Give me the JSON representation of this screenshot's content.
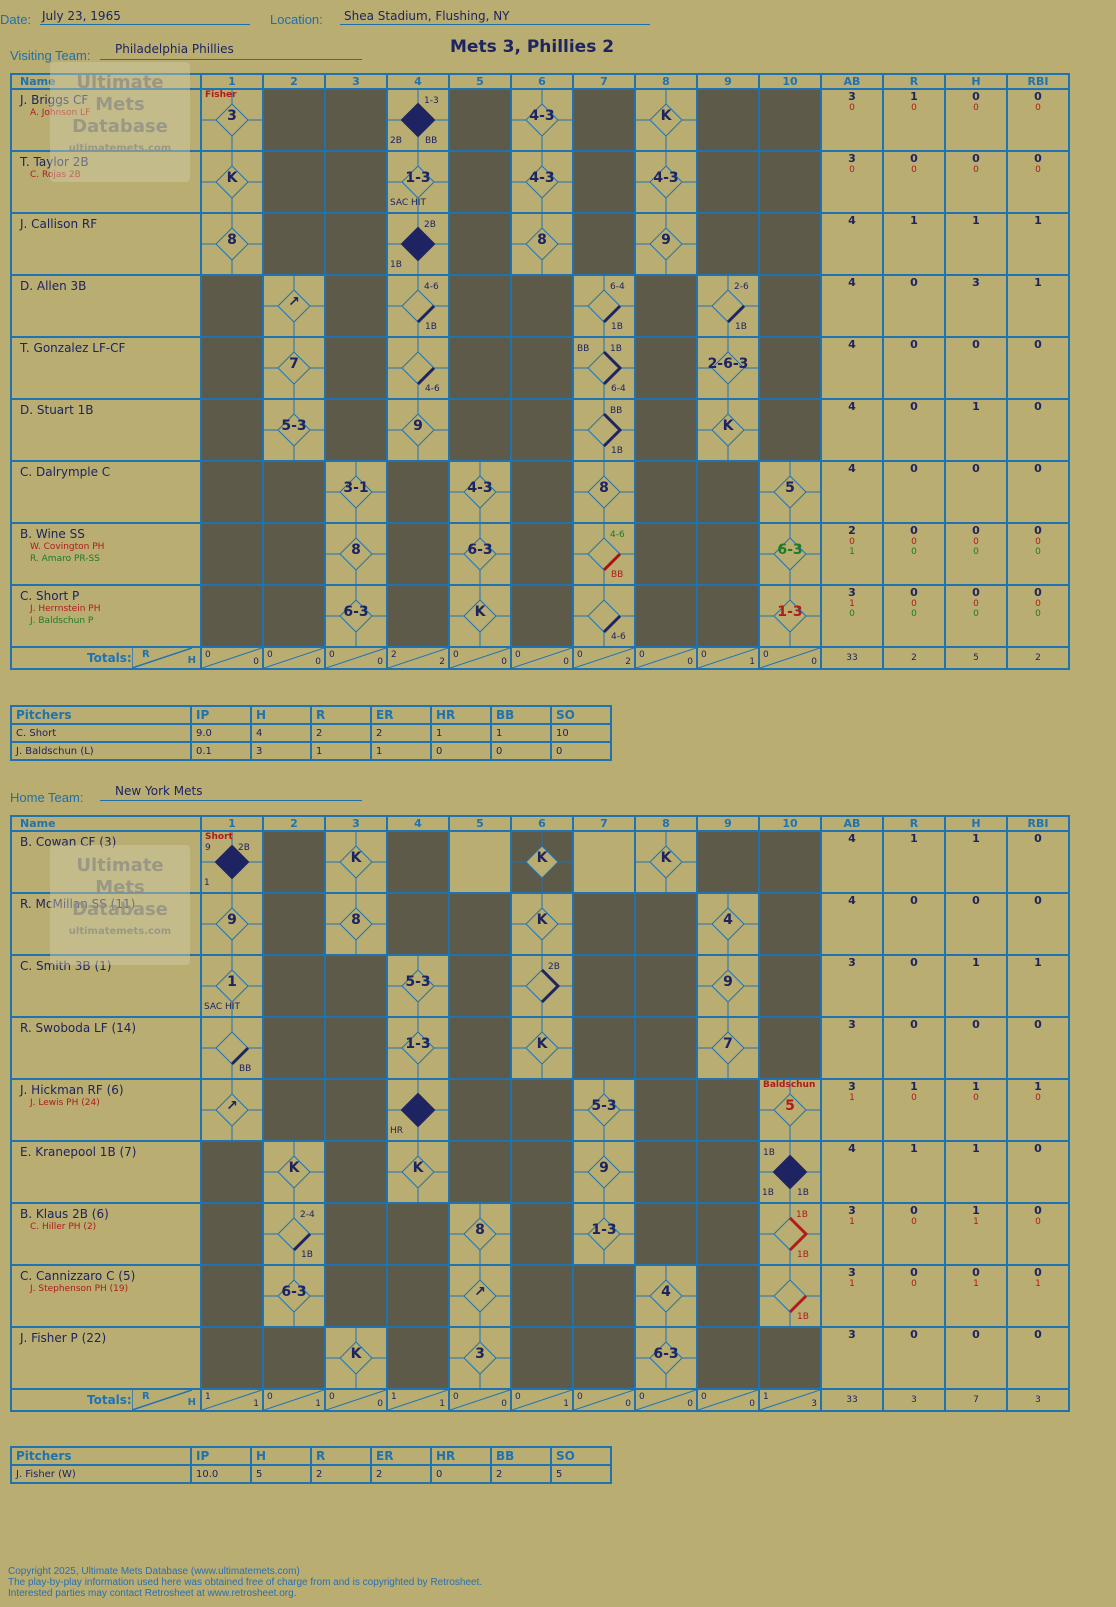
{
  "header": {
    "date_label": "Date:",
    "date": "July 23, 1965",
    "location_label": "Location:",
    "location": "Shea Stadium, Flushing, NY",
    "visiting_label": "Visiting Team:",
    "visiting": "Philadelphia Phillies",
    "home_label": "Home Team:",
    "home": "New York Mets",
    "game_title": "Mets 3, Phillies 2"
  },
  "columns": {
    "name": "Name",
    "innings": [
      "1",
      "2",
      "3",
      "4",
      "5",
      "6",
      "7",
      "8",
      "9",
      "10"
    ],
    "stats": [
      "AB",
      "R",
      "H",
      "RBI"
    ]
  },
  "totals_label": "Totals:",
  "rh": [
    "R",
    "H"
  ],
  "visitors": [
    {
      "name": "J. Briggs CF",
      "subs": [
        {
          "t": "A. Johnson LF",
          "c": "red"
        }
      ],
      "stats": [
        "3",
        "1",
        "0",
        "0"
      ],
      "sub_stats": [
        [
          "0",
          "0",
          "0",
          "0"
        ]
      ],
      "dark": [
        2,
        3,
        5,
        7,
        9,
        10
      ],
      "plays": {
        "1": {
          "res": "3",
          "note": "Fisher",
          "noteColor": "red"
        },
        "4": {
          "scored": true,
          "tr": "1-3",
          "bl": "2B",
          "br": "BB"
        },
        "6": {
          "res": "4-3"
        },
        "8": {
          "res": "K"
        }
      }
    },
    {
      "name": "T. Taylor 2B",
      "subs": [
        {
          "t": "C. Rojas 2B",
          "c": "red"
        }
      ],
      "stats": [
        "3",
        "0",
        "0",
        "0"
      ],
      "sub_stats": [
        [
          "0",
          "0",
          "0",
          "0"
        ]
      ],
      "dark": [
        2,
        3,
        5,
        7,
        9,
        10
      ],
      "plays": {
        "1": {
          "res": "K"
        },
        "4": {
          "res": "1-3",
          "bl": "SAC HIT"
        },
        "6": {
          "res": "4-3"
        },
        "8": {
          "res": "4-3"
        }
      }
    },
    {
      "name": "J. Callison RF",
      "subs": [],
      "stats": [
        "4",
        "1",
        "1",
        "1"
      ],
      "sub_stats": [],
      "dark": [
        2,
        3,
        5,
        7,
        9,
        10
      ],
      "plays": {
        "1": {
          "res": "8"
        },
        "4": {
          "scored": true,
          "tr": "2B",
          "bl": "1B"
        },
        "6": {
          "res": "8"
        },
        "8": {
          "res": "9"
        }
      }
    },
    {
      "name": "D. Allen 3B",
      "subs": [],
      "stats": [
        "4",
        "0",
        "3",
        "1"
      ],
      "sub_stats": [],
      "dark": [
        1,
        3,
        5,
        6,
        8,
        10
      ],
      "plays": {
        "2": {
          "res": "↗"
        },
        "4": {
          "first": true,
          "tr": "4-6",
          "br": "1B"
        },
        "7": {
          "first": true,
          "tr": "6-4",
          "br": "1B"
        },
        "9": {
          "first": true,
          "tr": "2-6",
          "br": "1B"
        }
      }
    },
    {
      "name": "T. Gonzalez LF-CF",
      "subs": [],
      "stats": [
        "4",
        "0",
        "0",
        "0"
      ],
      "sub_stats": [],
      "dark": [
        1,
        3,
        5,
        6,
        8,
        10
      ],
      "plays": {
        "2": {
          "res": "7"
        },
        "4": {
          "first": true,
          "br": "4-6"
        },
        "7": {
          "second": true,
          "tl": "BB",
          "tr": "1B",
          "br": "6-4"
        },
        "9": {
          "res": "2-6-3"
        }
      }
    },
    {
      "name": "D. Stuart 1B",
      "subs": [],
      "stats": [
        "4",
        "0",
        "1",
        "0"
      ],
      "sub_stats": [],
      "dark": [
        1,
        3,
        5,
        6,
        8,
        10
      ],
      "plays": {
        "2": {
          "res": "5-3"
        },
        "4": {
          "res": "9"
        },
        "7": {
          "second": true,
          "tr": "BB",
          "br": "1B"
        },
        "9": {
          "res": "K"
        }
      }
    },
    {
      "name": "C. Dalrymple C",
      "subs": [],
      "stats": [
        "4",
        "0",
        "0",
        "0"
      ],
      "sub_stats": [],
      "dark": [
        1,
        2,
        4,
        6,
        8,
        9
      ],
      "plays": {
        "3": {
          "res": "3-1"
        },
        "5": {
          "res": "4-3"
        },
        "7": {
          "res": "8"
        },
        "10": {
          "res": "5"
        }
      }
    },
    {
      "name": "B. Wine SS",
      "subs": [
        {
          "t": "W. Covington PH",
          "c": "red"
        },
        {
          "t": "R. Amaro PR-SS",
          "c": "green"
        }
      ],
      "stats": [
        "2",
        "0",
        "0",
        "0"
      ],
      "sub_stats": [
        [
          "0",
          "0",
          "0",
          "0"
        ],
        [
          "1",
          "0",
          "0",
          "0"
        ]
      ],
      "dark": [
        1,
        2,
        4,
        6,
        8,
        9
      ],
      "plays": {
        "3": {
          "res": "8"
        },
        "5": {
          "res": "6-3"
        },
        "7": {
          "first": true,
          "firstColor": "#a11",
          "tr": "4-6",
          "trColor": "green",
          "br": "BB",
          "brColor": "red"
        },
        "10": {
          "res": "6-3",
          "resColor": "green"
        }
      }
    },
    {
      "name": "C. Short P",
      "subs": [
        {
          "t": "J. Herrnstein PH",
          "c": "red"
        },
        {
          "t": "J. Baldschun P",
          "c": "green"
        }
      ],
      "stats": [
        "3",
        "0",
        "0",
        "0"
      ],
      "sub_stats": [
        [
          "1",
          "0",
          "0",
          "0"
        ],
        [
          "0",
          "0",
          "0",
          "0"
        ]
      ],
      "dark": [
        1,
        2,
        4,
        6,
        8,
        9
      ],
      "plays": {
        "3": {
          "res": "6-3"
        },
        "5": {
          "res": "K"
        },
        "7": {
          "first": true,
          "br": "4-6"
        },
        "10": {
          "res": "1-3",
          "resColor": "red"
        }
      }
    }
  ],
  "visitor_totals": {
    "rh": [
      [
        "0",
        "0"
      ],
      [
        "0",
        "0"
      ],
      [
        "0",
        "0"
      ],
      [
        "2",
        "2"
      ],
      [
        "0",
        "0"
      ],
      [
        "0",
        "0"
      ],
      [
        "0",
        "2"
      ],
      [
        "0",
        "0"
      ],
      [
        "0",
        "1"
      ],
      [
        "0",
        "0"
      ]
    ],
    "stats": [
      "33",
      "2",
      "5",
      "2"
    ]
  },
  "visitor_pitchers": {
    "headers": [
      "Pitchers",
      "IP",
      "H",
      "R",
      "ER",
      "HR",
      "BB",
      "SO"
    ],
    "rows": [
      [
        "C. Short",
        "9.0",
        "4",
        "2",
        "2",
        "1",
        "1",
        "10"
      ],
      [
        "J. Baldschun (L)",
        "0.1",
        "3",
        "1",
        "1",
        "0",
        "0",
        "0"
      ]
    ]
  },
  "home_players": [
    {
      "name": "B. Cowan CF (3)",
      "subs": [],
      "stats": [
        "4",
        "1",
        "1",
        "0"
      ],
      "sub_stats": [],
      "dark": [
        2,
        4,
        6,
        9,
        10
      ],
      "plays": {
        "1": {
          "scored": true,
          "note": "Short",
          "noteColor": "red",
          "tl": "9",
          "tr": "2B",
          "bl": "1"
        },
        "3": {
          "res": "K"
        },
        "6": {
          "res": "K"
        },
        "8": {
          "res": "K"
        }
      }
    },
    {
      "name": "R. McMillan SS (11)",
      "subs": [],
      "stats": [
        "4",
        "0",
        "0",
        "0"
      ],
      "sub_stats": [],
      "dark": [
        2,
        4,
        5,
        7,
        8,
        10
      ],
      "plays": {
        "1": {
          "res": "9"
        },
        "3": {
          "res": "8"
        },
        "6": {
          "res": "K"
        },
        "9": {
          "res": "4"
        }
      }
    },
    {
      "name": "C. Smith 3B (1)",
      "subs": [],
      "stats": [
        "3",
        "0",
        "1",
        "1"
      ],
      "sub_stats": [],
      "dark": [
        2,
        3,
        5,
        7,
        8,
        10
      ],
      "plays": {
        "1": {
          "res": "1",
          "bl": "SAC HIT"
        },
        "4": {
          "res": "5-3"
        },
        "6": {
          "second": true,
          "tr": "2B"
        },
        "9": {
          "res": "9"
        }
      }
    },
    {
      "name": "R. Swoboda LF (14)",
      "subs": [],
      "stats": [
        "3",
        "0",
        "0",
        "0"
      ],
      "sub_stats": [],
      "dark": [
        2,
        3,
        5,
        7,
        8,
        10
      ],
      "plays": {
        "1": {
          "first": true,
          "br": "BB"
        },
        "4": {
          "res": "1-3"
        },
        "6": {
          "res": "K"
        },
        "9": {
          "res": "7"
        }
      }
    },
    {
      "name": "J. Hickman RF (6)",
      "subs": [
        {
          "t": "J. Lewis PH (24)",
          "c": "red"
        }
      ],
      "stats": [
        "3",
        "1",
        "1",
        "1"
      ],
      "sub_stats": [
        [
          "1",
          "0",
          "0",
          "0"
        ]
      ],
      "dark": [
        2,
        3,
        5,
        6,
        8,
        9
      ],
      "plays": {
        "1": {
          "res": "↗"
        },
        "4": {
          "scored": true,
          "bl": "HR"
        },
        "7": {
          "res": "5-3"
        },
        "10": {
          "res": "5",
          "resColor": "red",
          "note": "Baldschun",
          "noteColor": "red"
        }
      }
    },
    {
      "name": "E. Kranepool 1B (7)",
      "subs": [],
      "stats": [
        "4",
        "1",
        "1",
        "0"
      ],
      "sub_stats": [],
      "dark": [
        1,
        3,
        5,
        6,
        8,
        9
      ],
      "plays": {
        "2": {
          "res": "K"
        },
        "4": {
          "res": "K"
        },
        "7": {
          "res": "9"
        },
        "10": {
          "scored": true,
          "tl": "1B",
          "bl": "1B",
          "br": "1B"
        }
      }
    },
    {
      "name": "B. Klaus 2B (6)",
      "subs": [
        {
          "t": "C. Hiller PH (2)",
          "c": "red"
        }
      ],
      "stats": [
        "3",
        "0",
        "1",
        "0"
      ],
      "sub_stats": [
        [
          "1",
          "0",
          "1",
          "0"
        ]
      ],
      "dark": [
        1,
        3,
        4,
        6,
        8,
        9
      ],
      "plays": {
        "2": {
          "first": true,
          "tr": "2-4",
          "br": "1B"
        },
        "5": {
          "res": "8"
        },
        "7": {
          "res": "1-3"
        },
        "10": {
          "second": true,
          "color": "#b01b1b",
          "tr": "1B",
          "trColor": "red",
          "br": "1B",
          "brColor": "red"
        }
      }
    },
    {
      "name": "C. Cannizzaro C (5)",
      "subs": [
        {
          "t": "J. Stephenson PH (19)",
          "c": "red"
        }
      ],
      "stats": [
        "3",
        "0",
        "0",
        "0"
      ],
      "sub_stats": [
        [
          "1",
          "0",
          "1",
          "1"
        ]
      ],
      "dark": [
        1,
        3,
        4,
        6,
        7,
        9
      ],
      "plays": {
        "2": {
          "res": "6-3"
        },
        "5": {
          "res": "↗"
        },
        "8": {
          "res": "4"
        },
        "10": {
          "first": true,
          "firstColor": "#b01b1b",
          "br": "1B",
          "brColor": "red"
        }
      }
    },
    {
      "name": "J. Fisher P (22)",
      "subs": [],
      "stats": [
        "3",
        "0",
        "0",
        "0"
      ],
      "sub_stats": [],
      "dark": [
        1,
        2,
        4,
        6,
        7,
        9,
        10
      ],
      "plays": {
        "3": {
          "res": "K"
        },
        "5": {
          "res": "3"
        },
        "8": {
          "res": "6-3"
        }
      }
    }
  ],
  "home_totals": {
    "rh": [
      [
        "1",
        "1"
      ],
      [
        "0",
        "1"
      ],
      [
        "0",
        "0"
      ],
      [
        "1",
        "1"
      ],
      [
        "0",
        "0"
      ],
      [
        "0",
        "1"
      ],
      [
        "0",
        "0"
      ],
      [
        "0",
        "0"
      ],
      [
        "0",
        "0"
      ],
      [
        "1",
        "3"
      ]
    ],
    "stats": [
      "33",
      "3",
      "7",
      "3"
    ]
  },
  "home_pitchers": {
    "headers": [
      "Pitchers",
      "IP",
      "H",
      "R",
      "ER",
      "HR",
      "BB",
      "SO"
    ],
    "rows": [
      [
        "J. Fisher (W)",
        "10.0",
        "5",
        "2",
        "2",
        "0",
        "2",
        "5"
      ]
    ]
  },
  "watermark": {
    "line1": "Ultimate",
    "line2": "Mets",
    "line3": "Database",
    "url": "ultimatemets.com"
  },
  "footer": {
    "line1": "Copyright 2025, Ultimate Mets Database (www.ultimatemets.com)",
    "line2": "The play-by-play information used here was obtained free of charge from and is copyrighted by Retrosheet.",
    "line3": "Interested parties may contact Retrosheet at www.retrosheet.org."
  },
  "colors": {
    "background": "#b9ad72",
    "dark_cell": "#5e5a4a",
    "grid": "#1f73b0",
    "ink": "#1d2461",
    "red": "#b01b1b",
    "green": "#1f7a28"
  }
}
